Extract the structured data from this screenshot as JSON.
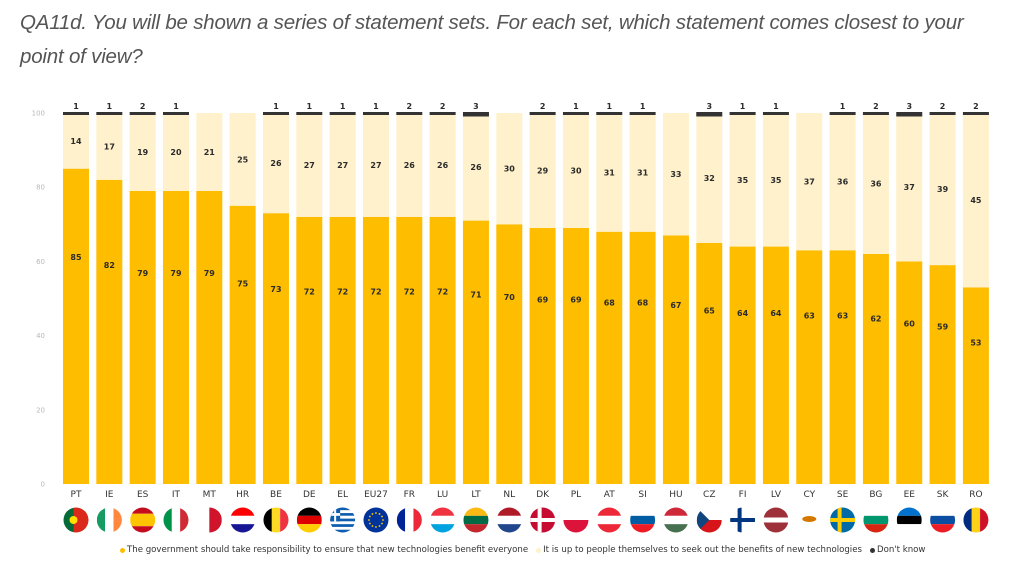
{
  "question": "QA11d. You will be shown a series of statement sets. For each set, which statement comes closest to your point of view?",
  "chart_data": {
    "type": "bar",
    "stacked": true,
    "title": "QA11d. You will be shown a series of statement sets. For each set, which statement comes closest to your point of view?",
    "xlabel": "",
    "ylabel": "",
    "ylim": [
      0,
      100
    ],
    "yticks": [
      0,
      20,
      40,
      60,
      80,
      100
    ],
    "grid": false,
    "legend_position": "bottom",
    "categories": [
      "PT",
      "IE",
      "ES",
      "IT",
      "MT",
      "HR",
      "BE",
      "DE",
      "EL",
      "EU27",
      "FR",
      "LU",
      "LT",
      "NL",
      "DK",
      "PL",
      "AT",
      "SI",
      "HU",
      "CZ",
      "FI",
      "LV",
      "CY",
      "SE",
      "BG",
      "EE",
      "SK",
      "RO"
    ],
    "series": [
      {
        "name": "The government should take responsibility to ensure that new technologies benefit everyone",
        "color": "#FFBD00",
        "values": [
          85,
          82,
          79,
          79,
          79,
          75,
          73,
          72,
          72,
          72,
          72,
          72,
          71,
          70,
          69,
          69,
          68,
          68,
          67,
          65,
          64,
          64,
          63,
          63,
          62,
          60,
          59,
          53
        ]
      },
      {
        "name": "It is up to people themselves to seek out the benefits of new technologies",
        "color": "#FFF1CC",
        "values": [
          14,
          17,
          19,
          20,
          21,
          25,
          26,
          27,
          27,
          27,
          26,
          26,
          26,
          30,
          29,
          30,
          31,
          31,
          33,
          32,
          35,
          35,
          37,
          36,
          36,
          37,
          39,
          45
        ]
      },
      {
        "name": "Don't know",
        "color": "#333333",
        "values": [
          1,
          1,
          2,
          1,
          null,
          null,
          1,
          1,
          1,
          1,
          2,
          2,
          3,
          null,
          2,
          1,
          1,
          1,
          null,
          3,
          1,
          1,
          null,
          1,
          2,
          3,
          2,
          2
        ]
      }
    ]
  },
  "flags": [
    {
      "code": "PT",
      "label": "Portugal flag",
      "colors": [
        "#046A38",
        "#DA291C"
      ],
      "layout": "pt"
    },
    {
      "code": "IE",
      "label": "Ireland flag",
      "colors": [
        "#169B62",
        "#FFFFFF",
        "#FF883E"
      ],
      "layout": "v3"
    },
    {
      "code": "ES",
      "label": "Spain flag",
      "colors": [
        "#C60B1E",
        "#FFC400",
        "#C60B1E"
      ],
      "layout": "es"
    },
    {
      "code": "IT",
      "label": "Italy flag",
      "colors": [
        "#009246",
        "#FFFFFF",
        "#CE2B37"
      ],
      "layout": "v3"
    },
    {
      "code": "MT",
      "label": "Malta flag",
      "colors": [
        "#FFFFFF",
        "#CF142B"
      ],
      "layout": "v2"
    },
    {
      "code": "HR",
      "label": "Croatia flag",
      "colors": [
        "#FF0000",
        "#FFFFFF",
        "#171796"
      ],
      "layout": "h3"
    },
    {
      "code": "BE",
      "label": "Belgium flag",
      "colors": [
        "#000000",
        "#FDDA24",
        "#EF3340"
      ],
      "layout": "v3"
    },
    {
      "code": "DE",
      "label": "Germany flag",
      "colors": [
        "#000000",
        "#DD0000",
        "#FFCE00"
      ],
      "layout": "h3"
    },
    {
      "code": "EL",
      "label": "Greece flag",
      "colors": [
        "#0D5EAF",
        "#FFFFFF"
      ],
      "layout": "gr"
    },
    {
      "code": "EU27",
      "label": "EU flag",
      "colors": [
        "#003399",
        "#FFCC00"
      ],
      "layout": "eu"
    },
    {
      "code": "FR",
      "label": "France flag",
      "colors": [
        "#002395",
        "#FFFFFF",
        "#ED2939"
      ],
      "layout": "v3"
    },
    {
      "code": "LU",
      "label": "Luxembourg flag",
      "colors": [
        "#EF3340",
        "#FFFFFF",
        "#00A3E0"
      ],
      "layout": "h3"
    },
    {
      "code": "LT",
      "label": "Lithuania flag",
      "colors": [
        "#FDB913",
        "#006A44",
        "#C1272D"
      ],
      "layout": "h3"
    },
    {
      "code": "NL",
      "label": "Netherlands flag",
      "colors": [
        "#AE1C28",
        "#FFFFFF",
        "#21468B"
      ],
      "layout": "h3"
    },
    {
      "code": "DK",
      "label": "Denmark flag",
      "colors": [
        "#C60C30",
        "#FFFFFF"
      ],
      "layout": "nordic"
    },
    {
      "code": "PL",
      "label": "Poland flag",
      "colors": [
        "#FFFFFF",
        "#DC143C"
      ],
      "layout": "h2"
    },
    {
      "code": "AT",
      "label": "Austria flag",
      "colors": [
        "#ED2939",
        "#FFFFFF",
        "#ED2939"
      ],
      "layout": "h3"
    },
    {
      "code": "SI",
      "label": "Slovenia flag",
      "colors": [
        "#FFFFFF",
        "#005DA4",
        "#ED1C24"
      ],
      "layout": "h3"
    },
    {
      "code": "HU",
      "label": "Hungary flag",
      "colors": [
        "#CE2939",
        "#FFFFFF",
        "#477050"
      ],
      "layout": "h3"
    },
    {
      "code": "CZ",
      "label": "Czechia flag",
      "colors": [
        "#FFFFFF",
        "#D7141A",
        "#11457E"
      ],
      "layout": "cz"
    },
    {
      "code": "FI",
      "label": "Finland flag",
      "colors": [
        "#FFFFFF",
        "#003580"
      ],
      "layout": "nordic"
    },
    {
      "code": "LV",
      "label": "Latvia flag",
      "colors": [
        "#9E3039",
        "#FFFFFF",
        "#9E3039"
      ],
      "layout": "lv"
    },
    {
      "code": "CY",
      "label": "Cyprus flag",
      "colors": [
        "#FFFFFF",
        "#D57800"
      ],
      "layout": "cy"
    },
    {
      "code": "SE",
      "label": "Sweden flag",
      "colors": [
        "#006AA7",
        "#FECC00"
      ],
      "layout": "nordic"
    },
    {
      "code": "BG",
      "label": "Bulgaria flag",
      "colors": [
        "#FFFFFF",
        "#00966E",
        "#D62612"
      ],
      "layout": "h3"
    },
    {
      "code": "EE",
      "label": "Estonia flag",
      "colors": [
        "#0072CE",
        "#000000",
        "#FFFFFF"
      ],
      "layout": "h3"
    },
    {
      "code": "SK",
      "label": "Slovakia flag",
      "colors": [
        "#FFFFFF",
        "#0B4EA2",
        "#EE1C25"
      ],
      "layout": "h3"
    },
    {
      "code": "RO",
      "label": "Romania flag",
      "colors": [
        "#002B7F",
        "#FCD116",
        "#CE1126"
      ],
      "layout": "v3"
    }
  ],
  "legend": {
    "items": [
      {
        "label": "The government should take responsibility to ensure that new technologies benefit everyone",
        "color": "#FFBD00"
      },
      {
        "label": "It is up to people themselves to seek out the benefits of new technologies",
        "color": "#FFF1CC"
      },
      {
        "label": "Don't know",
        "color": "#333333"
      }
    ]
  }
}
